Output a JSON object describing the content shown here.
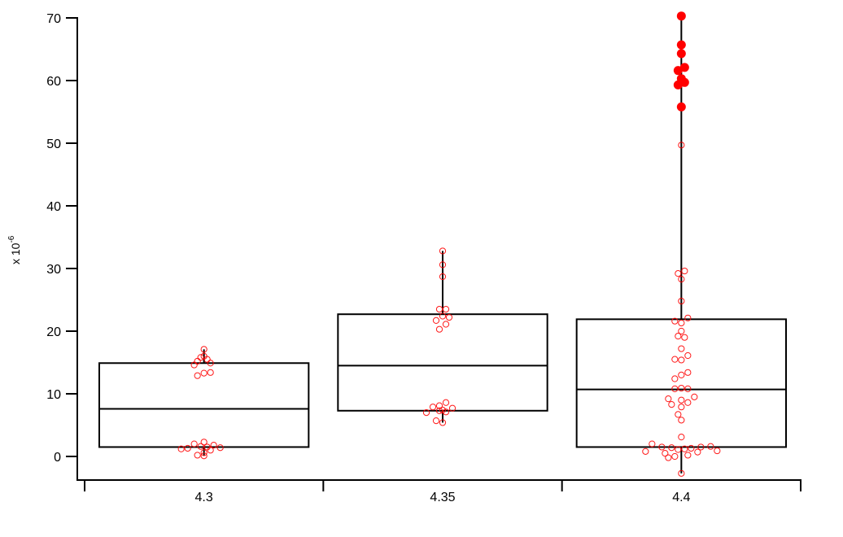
{
  "chart_data": {
    "type": "box",
    "title": "",
    "xlabel": "",
    "ylabel": "x 10^-6",
    "ylabel_base": "x 10",
    "ylabel_exp": "-6",
    "ylim": [
      -3.7,
      71
    ],
    "yticks": [
      0,
      10,
      20,
      30,
      40,
      50,
      60,
      70
    ],
    "categories": [
      "4.3",
      "4.35",
      "4.4"
    ],
    "grid": false,
    "legend": null,
    "colors": {
      "box": "#000000",
      "points": "#ff0000",
      "outlier_fill": "#ff0000"
    },
    "boxes": [
      {
        "category": "4.3",
        "q1": 1.5,
        "median": 7.6,
        "q3": 14.9,
        "whisker_low": 0.1,
        "whisker_high": 17.1,
        "points": [
          17.1,
          16.0,
          15.8,
          15.5,
          15.2,
          14.9,
          14.6,
          13.4,
          13.3,
          12.9,
          2.3,
          2.0,
          1.8,
          1.6,
          1.5,
          1.4,
          1.3,
          1.2,
          1.0,
          0.6,
          0.2,
          0.1
        ],
        "point_dx": [
          0,
          0,
          -4,
          4,
          -8,
          8,
          -12,
          8,
          0,
          -8,
          0,
          -12,
          12,
          -4,
          4,
          20,
          -20,
          -28,
          8,
          0,
          -8,
          0
        ],
        "outliers": []
      },
      {
        "category": "4.35",
        "q1": 7.3,
        "median": 14.5,
        "q3": 22.7,
        "whisker_low": 5.4,
        "whisker_high": 32.8,
        "points": [
          32.8,
          30.6,
          28.7,
          23.5,
          23.5,
          22.4,
          22.2,
          21.7,
          21.1,
          20.3,
          8.6,
          8.1,
          7.9,
          7.7,
          7.4,
          7.3,
          7.1,
          7.0,
          5.7,
          5.4
        ],
        "point_dx": [
          0,
          0,
          0,
          -4,
          4,
          0,
          8,
          -8,
          4,
          -4,
          4,
          -4,
          -12,
          12,
          0,
          -4,
          4,
          -20,
          -8,
          0
        ],
        "outliers": []
      },
      {
        "category": "4.4",
        "q1": 1.5,
        "median": 10.7,
        "q3": 21.9,
        "whisker_low": -2.7,
        "whisker_high": 70.3,
        "points": [
          49.7,
          29.6,
          29.2,
          28.3,
          24.8,
          22.1,
          21.6,
          21.3,
          20.0,
          19.2,
          19.0,
          17.2,
          16.1,
          15.5,
          15.4,
          13.4,
          13.0,
          12.4,
          10.9,
          10.8,
          10.8,
          9.5,
          9.2,
          9.0,
          8.6,
          8.3,
          7.9,
          6.7,
          5.8,
          3.1,
          2.0,
          1.6,
          1.5,
          1.5,
          1.4,
          1.3,
          1.2,
          1.1,
          0.9,
          0.8,
          0.7,
          0.5,
          0.2,
          0.0,
          -0.2,
          -2.7
        ],
        "point_dx": [
          0,
          4,
          -4,
          0,
          0,
          8,
          -8,
          0,
          0,
          -4,
          4,
          0,
          8,
          -8,
          0,
          8,
          0,
          -8,
          0,
          -8,
          8,
          16,
          -16,
          0,
          8,
          -12,
          0,
          -4,
          0,
          0,
          -36,
          36,
          -24,
          24,
          -12,
          12,
          4,
          -4,
          44,
          -44,
          20,
          -20,
          8,
          -8,
          -16,
          0
        ],
        "outliers": [
          70.3,
          65.7,
          64.3,
          62.1,
          61.6,
          60.3,
          59.7,
          59.3,
          55.8
        ],
        "outlier_dx": [
          0,
          0,
          0,
          4,
          -4,
          0,
          4,
          -4,
          0
        ]
      }
    ]
  }
}
